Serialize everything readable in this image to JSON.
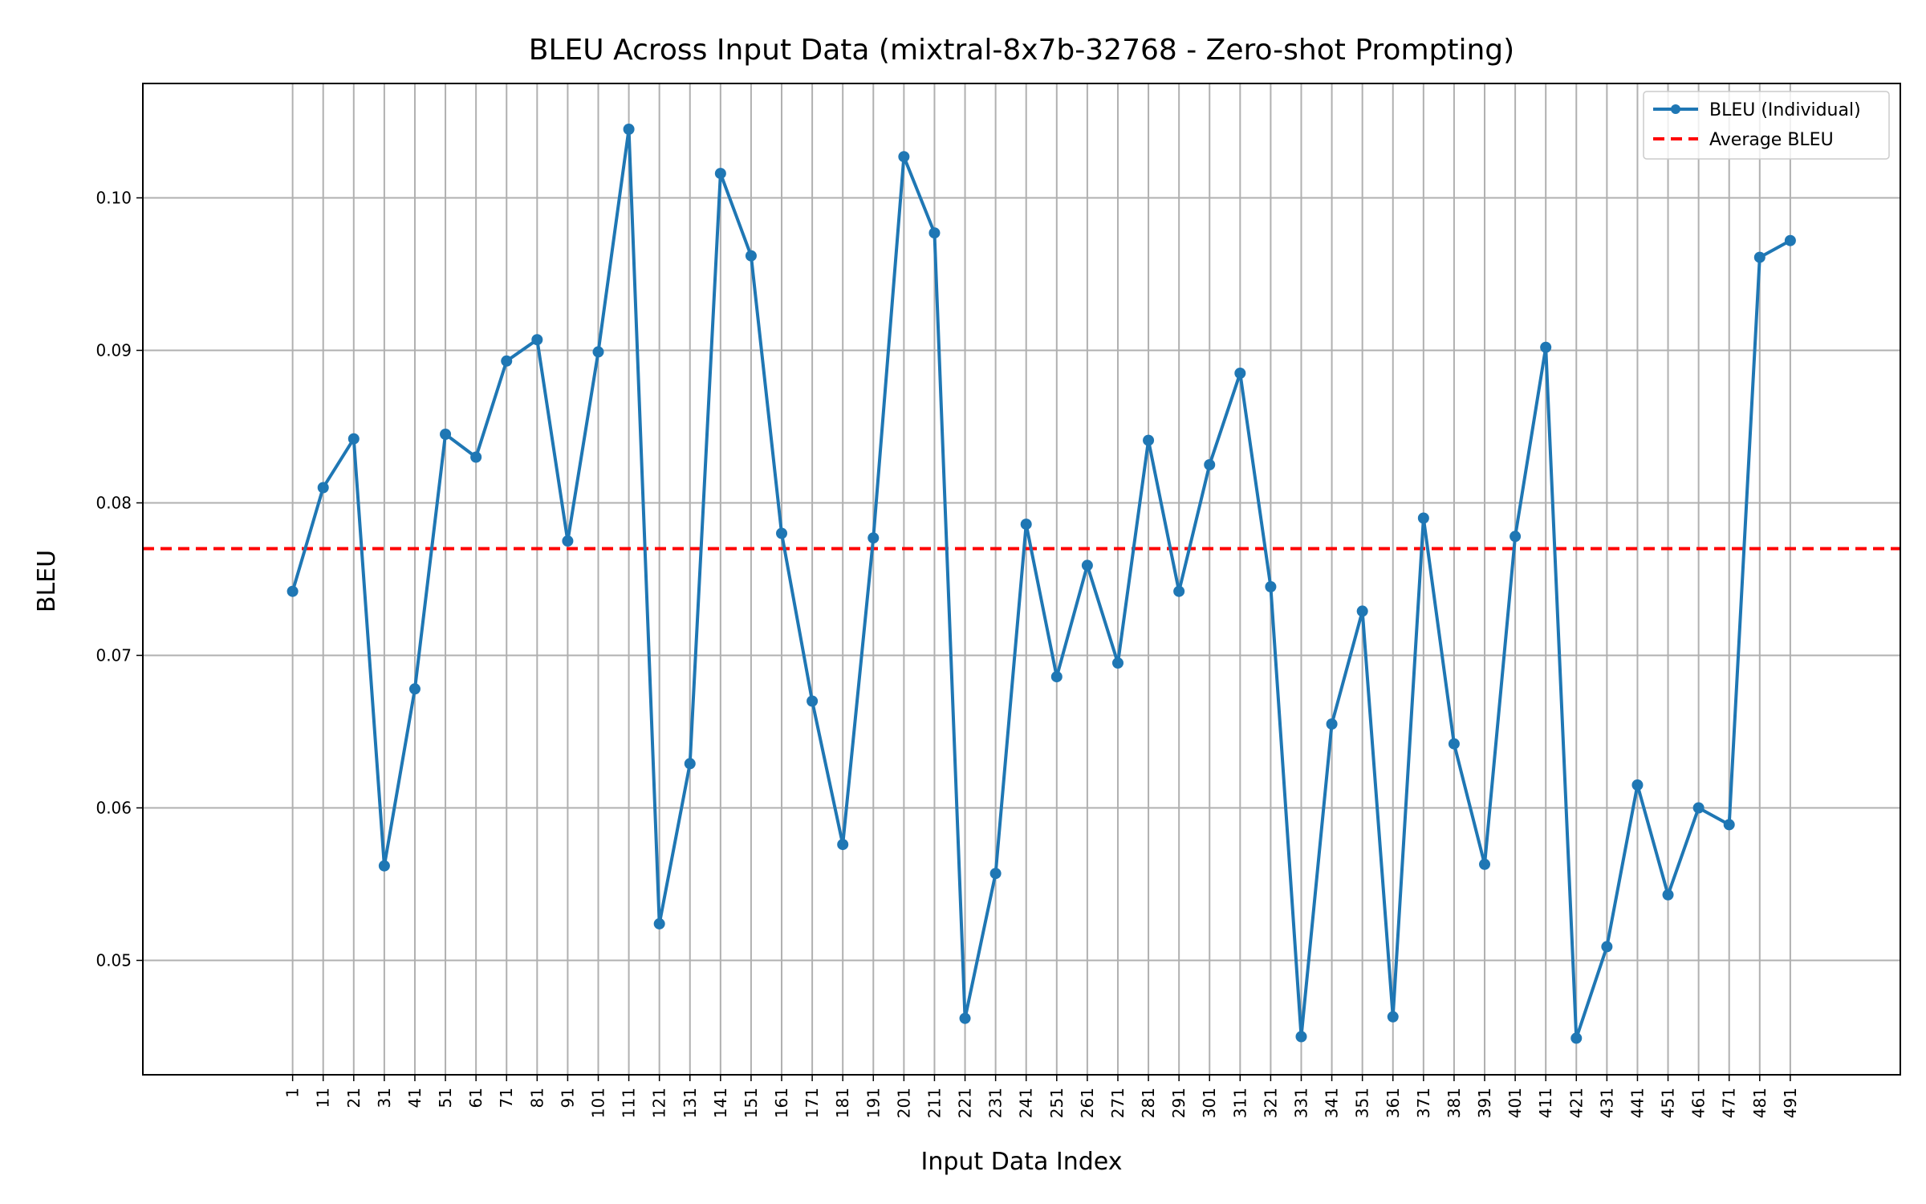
{
  "chart_data": {
    "type": "line",
    "title": "BLEU Across Input Data (mixtral-8x7b-32768 - Zero-shot Prompting)",
    "xlabel": "Input Data Index",
    "ylabel": "BLEU",
    "x": [
      1,
      11,
      21,
      31,
      41,
      51,
      61,
      71,
      81,
      91,
      101,
      111,
      121,
      131,
      141,
      151,
      161,
      171,
      181,
      191,
      201,
      211,
      221,
      231,
      241,
      251,
      261,
      271,
      281,
      291,
      301,
      311,
      321,
      331,
      341,
      351,
      361,
      371,
      381,
      391,
      401,
      411,
      421,
      431,
      441,
      451,
      461,
      471,
      481,
      491
    ],
    "xlim": [
      -48,
      527
    ],
    "ylim": [
      0.0425,
      0.1075
    ],
    "yticks": [
      0.05,
      0.06,
      0.07,
      0.08,
      0.09,
      0.1
    ],
    "ytick_labels": [
      "0.05",
      "0.06",
      "0.07",
      "0.08",
      "0.09",
      "0.10"
    ],
    "grid": true,
    "legend_position": "upper right",
    "series": [
      {
        "name": "BLEU (Individual)",
        "color": "#1f77b4",
        "style": "solid-with-markers",
        "values": [
          0.0742,
          0.081,
          0.0842,
          0.0562,
          0.0678,
          0.0845,
          0.083,
          0.0893,
          0.0907,
          0.0775,
          0.0899,
          0.1045,
          0.0524,
          0.0629,
          0.1016,
          0.0962,
          0.078,
          0.067,
          0.0576,
          0.0777,
          0.1027,
          0.0977,
          0.0462,
          0.0557,
          0.0786,
          0.0686,
          0.0759,
          0.0695,
          0.0841,
          0.0742,
          0.0825,
          0.0885,
          0.0745,
          0.045,
          0.0655,
          0.0729,
          0.0463,
          0.079,
          0.0642,
          0.0563,
          0.0778,
          0.0902,
          0.0449,
          0.0509,
          0.0615,
          0.0543,
          0.06,
          0.0589,
          0.0961,
          0.0972
        ]
      },
      {
        "name": "Average BLEU",
        "color": "#ff0000",
        "style": "dashed",
        "value": 0.077
      }
    ]
  }
}
